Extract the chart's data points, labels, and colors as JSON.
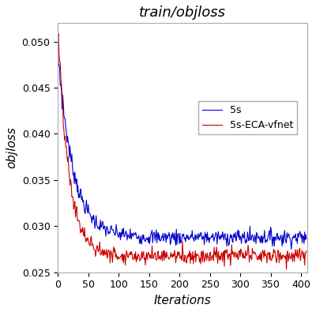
{
  "title": "train/objloss",
  "xlabel": "Iterations",
  "ylabel": "objloss",
  "xlim": [
    0,
    410
  ],
  "ylim": [
    0.025,
    0.052
  ],
  "yticks": [
    0.025,
    0.03,
    0.035,
    0.04,
    0.045,
    0.05
  ],
  "xticks": [
    0,
    50,
    100,
    150,
    200,
    250,
    300,
    350,
    400
  ],
  "line1_label": "5s",
  "line1_color": "#0000cc",
  "line2_label": "5s-ECA-vfnet",
  "line2_color": "#cc0000",
  "n_points": 410,
  "figsize": [
    4.0,
    3.95
  ],
  "dpi": 100,
  "title_fontsize": 13,
  "label_fontsize": 11,
  "tick_fontsize": 9,
  "legend_fontsize": 9,
  "linewidth": 0.8
}
